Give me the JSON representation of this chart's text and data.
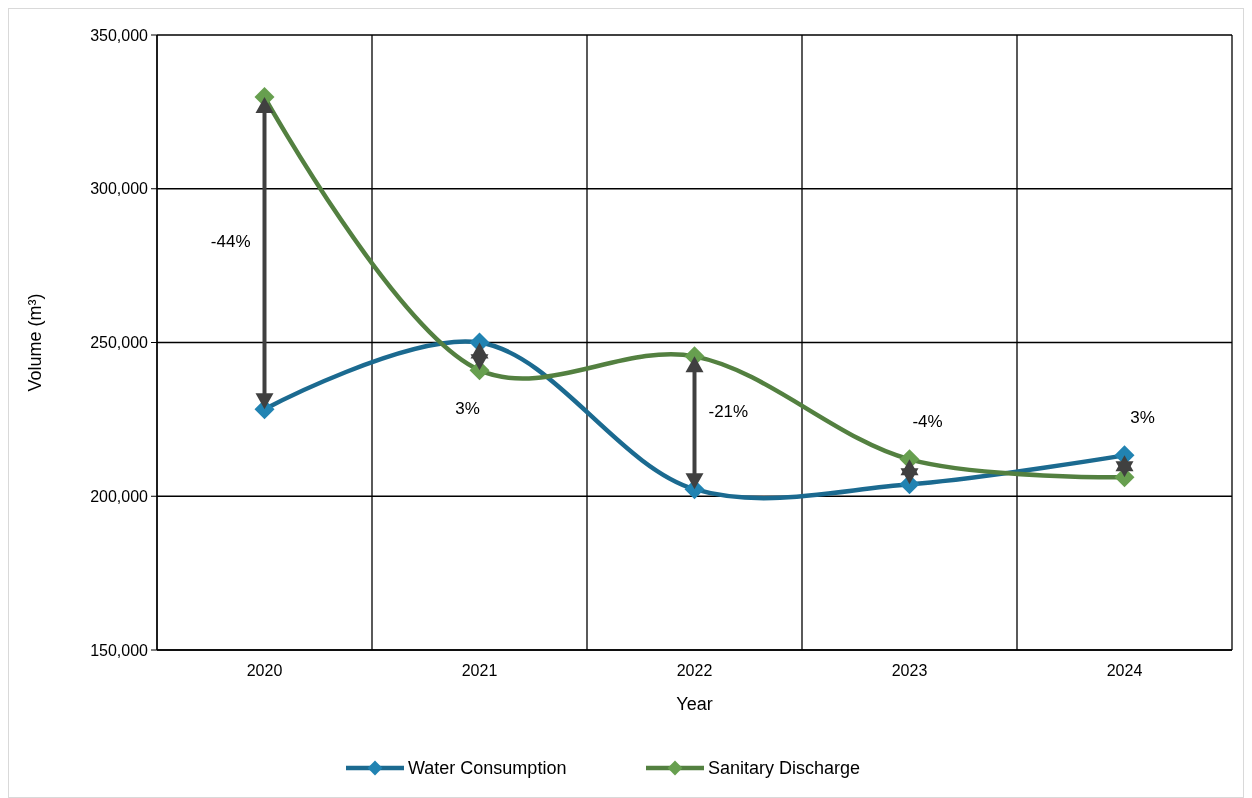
{
  "chart_data": {
    "type": "line",
    "xlabel": "Year",
    "ylabel": "Volume (m³)",
    "categories": [
      "2020",
      "2021",
      "2022",
      "2023",
      "2024"
    ],
    "series": [
      {
        "name": "Water Consumption",
        "color": "#1b6a90",
        "values": [
          228300,
          250000,
          202300,
          203900,
          213300
        ]
      },
      {
        "name": "Sanitary Discharge",
        "color": "#538040",
        "values": [
          329800,
          241000,
          245500,
          212000,
          206200
        ]
      }
    ],
    "ylim": [
      150000,
      350000
    ],
    "yticks": [
      {
        "value": 150000,
        "label": "150,000"
      },
      {
        "value": 200000,
        "label": "200,000"
      },
      {
        "value": 250000,
        "label": "250,000"
      },
      {
        "value": 300000,
        "label": "300,000"
      },
      {
        "value": 350000,
        "label": "350,000"
      }
    ],
    "grid": true,
    "legend": "bottom",
    "marker": "diamond",
    "line_style": "solid",
    "annotations": [
      "-44%",
      "3%",
      "-21%",
      "-4%",
      "3%"
    ]
  }
}
